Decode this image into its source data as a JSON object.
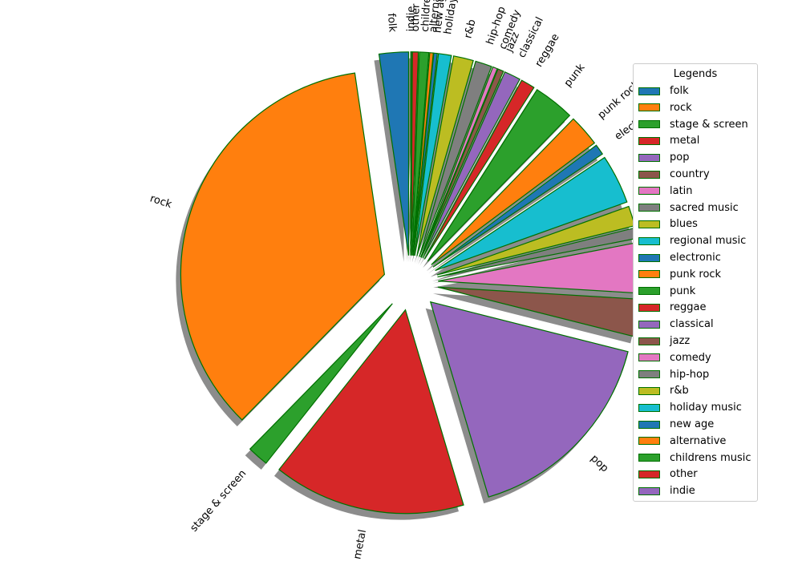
{
  "chart_data": {
    "type": "pie",
    "title": "",
    "legend_title": "Legends",
    "legend_placement": "right",
    "shadow": true,
    "exploded": true,
    "edge_color": "#007000",
    "start_angle_deg": 90,
    "direction": "counterclockwise",
    "categories": [
      "folk",
      "rock",
      "stage & screen",
      "metal",
      "pop",
      "country",
      "latin",
      "sacred music",
      "blues",
      "regional music",
      "electronic",
      "punk rock",
      "punk",
      "reggae",
      "classical",
      "jazz",
      "comedy",
      "hip-hop",
      "r&b",
      "holiday music",
      "new age",
      "alternative",
      "childrens music",
      "other",
      "indie"
    ],
    "values": [
      2.5,
      38.0,
      1.8,
      16.4,
      17.7,
      3.2,
      4.3,
      0.9,
      1.7,
      4.2,
      0.9,
      2.7,
      3.5,
      1.2,
      1.4,
      0.5,
      0.4,
      1.4,
      1.7,
      1.1,
      0.3,
      0.3,
      0.8,
      0.5,
      0.1
    ],
    "explode": [
      0.3,
      0.3,
      0.3,
      0.3,
      0.3,
      0.3,
      0.3,
      0.3,
      0.3,
      0.3,
      0.3,
      0.3,
      0.3,
      0.3,
      0.3,
      0.3,
      0.3,
      0.3,
      0.3,
      0.3,
      0.3,
      0.3,
      0.3,
      0.3,
      0.3
    ],
    "colors": [
      "#1f77b4",
      "#ff7f0e",
      "#2ca02c",
      "#d62728",
      "#9467bd",
      "#8c564b",
      "#e377c2",
      "#7f7f7f",
      "#bcbd22",
      "#17becf",
      "#1f77b4",
      "#ff7f0e",
      "#2ca02c",
      "#d62728",
      "#9467bd",
      "#8c564b",
      "#e377c2",
      "#7f7f7f",
      "#bcbd22",
      "#17becf",
      "#1f77b4",
      "#ff7f0e",
      "#2ca02c",
      "#d62728",
      "#9467bd"
    ]
  }
}
